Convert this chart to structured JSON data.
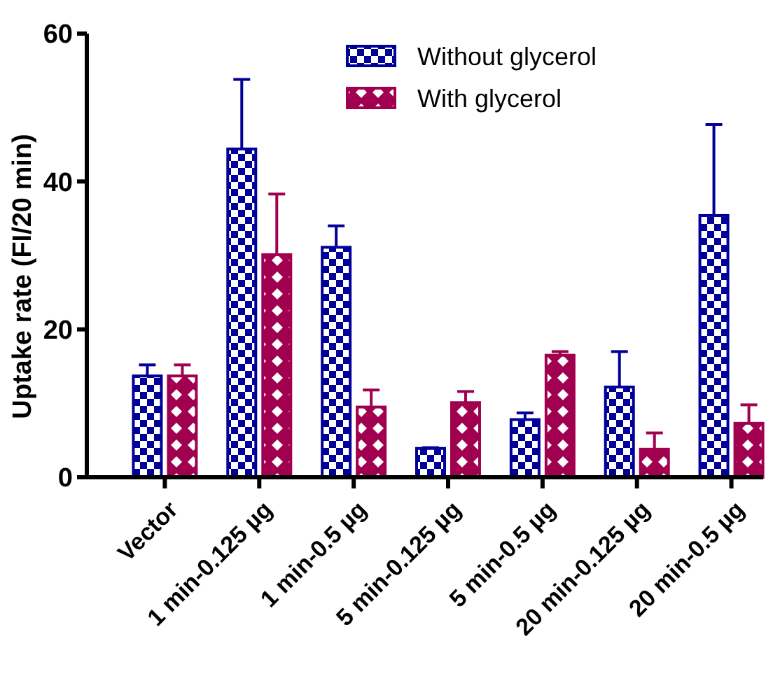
{
  "chart_data": {
    "type": "bar",
    "ylabel": "Uptake rate (FI/20 min)",
    "categories": [
      "Vector",
      "1 min-0.125 µg",
      "1 min-0.5 µg",
      "5 min-0.125 µg",
      "5 min-0.5 µg",
      "20 min-0.125 µg",
      "20 min-0.5 µg"
    ],
    "series": [
      {
        "name": "Without glycerol",
        "color": "#000099",
        "values": [
          13.7,
          44.4,
          31.1,
          3.9,
          7.8,
          12.2,
          35.4
        ],
        "errors": [
          [
            13.7,
            15.2
          ],
          [
            44.4,
            53.8
          ],
          [
            31.1,
            34.0
          ],
          [
            3.9,
            4.0
          ],
          [
            7.8,
            8.7
          ],
          [
            12.2,
            17.0
          ],
          [
            35.4,
            47.7
          ]
        ]
      },
      {
        "name": "With glycerol",
        "color": "#a0004f",
        "values": [
          13.7,
          30.1,
          9.5,
          10.1,
          16.5,
          3.8,
          7.3
        ],
        "errors": [
          [
            13.7,
            15.2
          ],
          [
            30.1,
            38.3
          ],
          [
            9.5,
            11.8
          ],
          [
            10.1,
            11.6
          ],
          [
            16.5,
            17.0
          ],
          [
            3.8,
            6.0
          ],
          [
            7.3,
            9.8
          ]
        ]
      }
    ],
    "ylim": [
      0,
      60
    ],
    "yticks": [
      0,
      20,
      40,
      60
    ],
    "grid": false,
    "legend": "top right"
  }
}
